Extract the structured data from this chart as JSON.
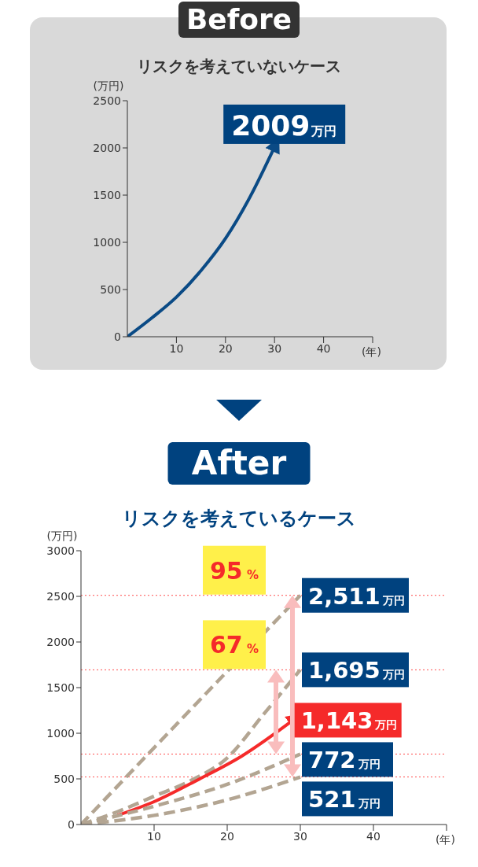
{
  "chart_data": [
    {
      "type": "line",
      "title": "リスクを考えていないケース",
      "xlabel": "(年)",
      "ylabel": "(万円)",
      "annotations": [
        "Before"
      ],
      "xlim": [
        0,
        50
      ],
      "xticks": [
        10,
        20,
        30,
        40,
        {
          "value": 50,
          "label": null
        }
      ],
      "ylim": [
        0,
        2500
      ],
      "yticks": [
        0,
        500,
        1000,
        1500,
        2000,
        2500
      ],
      "marker": "none",
      "line_style": "solid",
      "series": [
        {
          "color": "#0a4a85",
          "x": [
            0,
            5,
            10,
            15,
            20,
            25,
            30
          ],
          "values": [
            0,
            200,
            420,
            700,
            1040,
            1480,
            2009
          ],
          "value_labels": [
            null,
            null,
            null,
            null,
            null,
            null,
            "2009万円"
          ]
        }
      ]
    },
    {
      "type": "line",
      "title": "リスクを考えているケース",
      "xlabel": "(年)",
      "ylabel": "(万円)",
      "annotations": [
        "After",
        "95 %",
        "67 %"
      ],
      "xlim": [
        0,
        50
      ],
      "xticks": [
        10,
        20,
        30,
        40,
        {
          "value": 50,
          "label": null
        }
      ],
      "ylim": [
        0,
        3000
      ],
      "yticks": [
        0,
        500,
        1000,
        1500,
        2000,
        2500,
        3000
      ],
      "marker": "none",
      "line_style": "dashed",
      "ref_lines": [
        {
          "axis": "y",
          "value": 2511,
          "color": "#ff4d4d",
          "line_style": "dotted"
        },
        {
          "axis": "y",
          "value": 1695,
          "color": "#ff4d4d",
          "line_style": "dotted"
        },
        {
          "axis": "y",
          "value": 772,
          "color": "#ff4d4d",
          "line_style": "dotted"
        },
        {
          "axis": "y",
          "value": 521,
          "color": "#ff4d4d",
          "line_style": "dotted"
        }
      ],
      "series": [
        {
          "color": "#b3a592",
          "x": [
            0,
            15,
            30
          ],
          "values": [
            0,
            1260,
            2511
          ],
          "value_labels": [
            null,
            null,
            "2,511万円"
          ]
        },
        {
          "color": "#b3a592",
          "x": [
            0,
            5,
            10,
            15,
            20,
            25,
            30
          ],
          "values": [
            0,
            140,
            310,
            480,
            730,
            1210,
            1695
          ],
          "value_labels": [
            null,
            null,
            null,
            null,
            null,
            null,
            "1,695万円"
          ]
        },
        {
          "color": "#f52a2a",
          "line_style": "solid",
          "x": [
            5,
            10,
            16,
            22,
            29
          ],
          "values": [
            100,
            250,
            490,
            750,
            1143
          ],
          "value_labels": [
            null,
            null,
            null,
            null,
            "1,143万円"
          ]
        },
        {
          "color": "#b3a592",
          "x": [
            0,
            10,
            20,
            30
          ],
          "values": [
            0,
            200,
            440,
            772
          ],
          "value_labels": [
            null,
            null,
            null,
            "772万円"
          ]
        },
        {
          "color": "#b3a592",
          "x": [
            0,
            10,
            20,
            30
          ],
          "values": [
            0,
            100,
            270,
            521
          ],
          "value_labels": [
            null,
            null,
            null,
            "521万円"
          ]
        }
      ]
    }
  ]
}
